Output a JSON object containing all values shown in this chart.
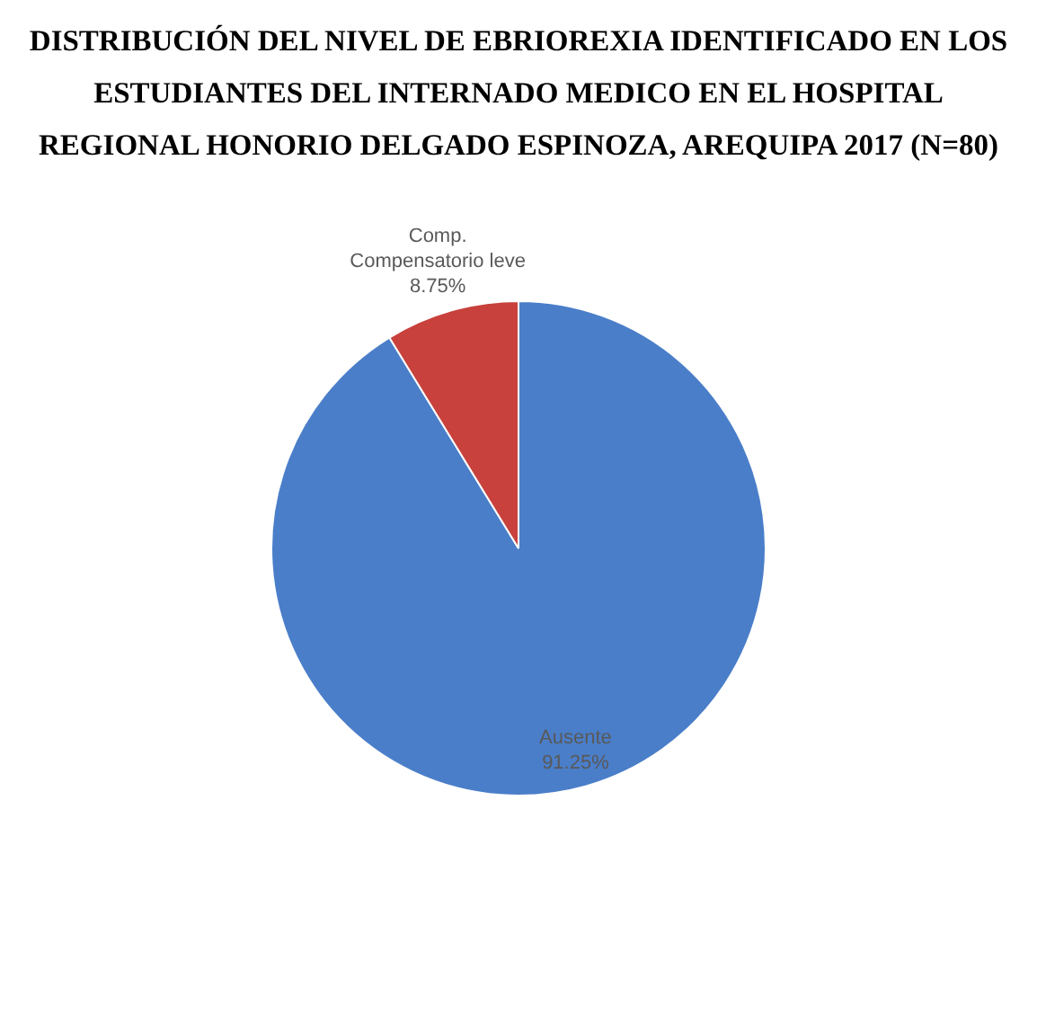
{
  "chart_data": {
    "type": "pie",
    "title": "DISTRIBUCIÓN DEL NIVEL DE EBRIOREXIA IDENTIFICADO EN LOS ESTUDIANTES DEL INTERNADO MEDICO EN EL HOSPITAL REGIONAL HONORIO DELGADO ESPINOZA, AREQUIPA 2017 (N=80)",
    "categories": [
      "Ausente",
      "Comp. Compensatorio leve"
    ],
    "values": [
      91.25,
      8.75
    ],
    "colors": [
      "#4a7ec9",
      "#c8413c"
    ],
    "value_labels": [
      "91.25%",
      "8.75%"
    ],
    "legend": false
  }
}
